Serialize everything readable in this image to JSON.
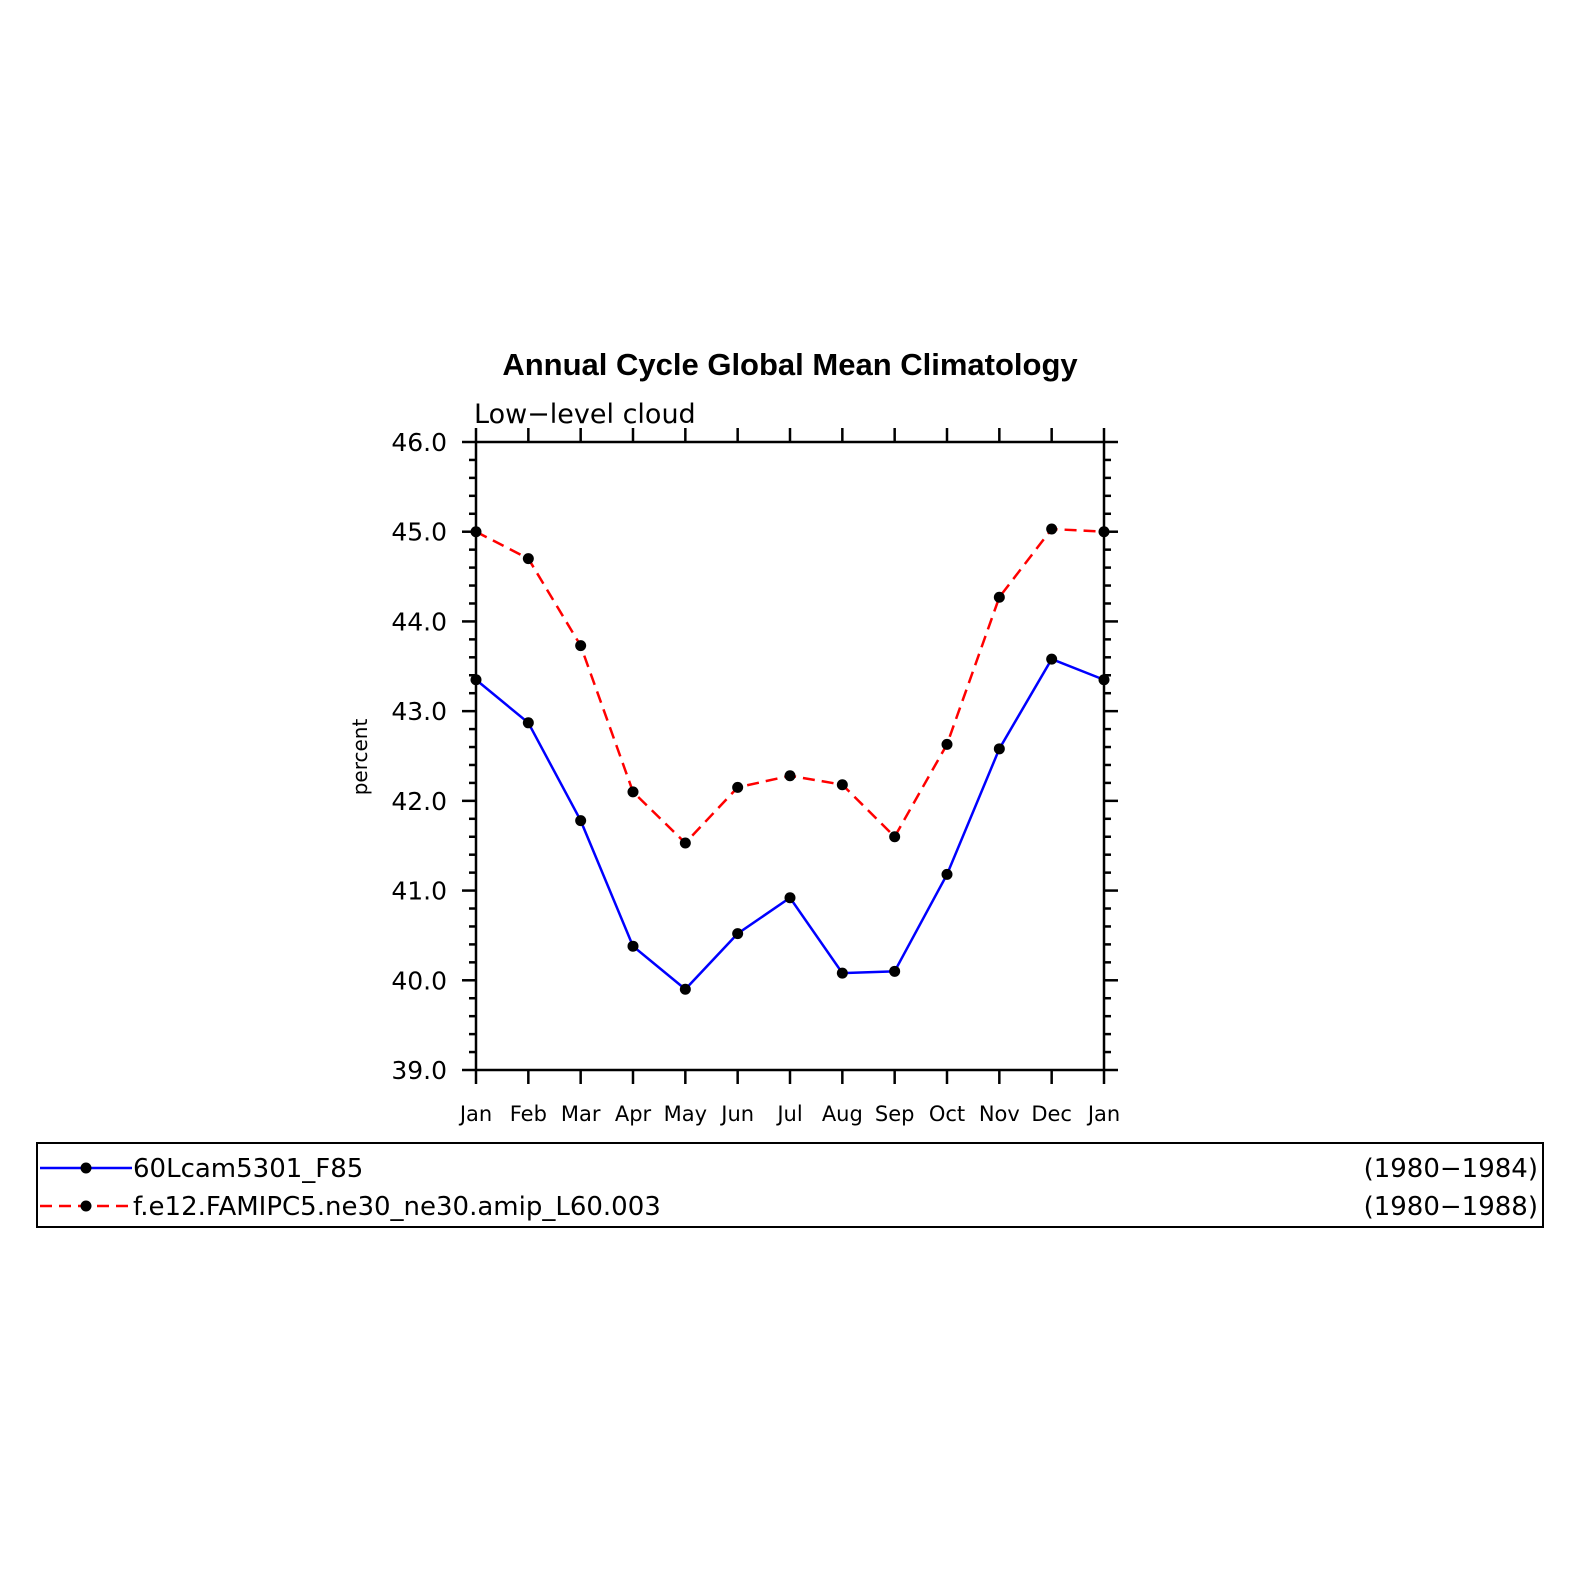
{
  "chart_data": {
    "type": "line",
    "title": "Annual Cycle Global Mean Climatology",
    "subtitle": "Low−level cloud",
    "ylabel": "percent",
    "xlabel": "",
    "ylim": [
      39.0,
      46.0
    ],
    "yticks": [
      "39.0",
      "40.0",
      "41.0",
      "42.0",
      "43.0",
      "44.0",
      "45.0",
      "46.0"
    ],
    "categories": [
      "Jan",
      "Feb",
      "Mar",
      "Apr",
      "May",
      "Jun",
      "Jul",
      "Aug",
      "Sep",
      "Oct",
      "Nov",
      "Dec",
      "Jan"
    ],
    "grid": false,
    "legend_position": "bottom",
    "series": [
      {
        "name": "60Lcam5301_F85",
        "period": "(1980−1984)",
        "color": "#0000ff",
        "dash": "solid",
        "values": [
          43.35,
          42.87,
          41.78,
          40.38,
          39.9,
          40.52,
          40.92,
          40.08,
          40.1,
          41.18,
          42.58,
          43.58,
          43.35
        ]
      },
      {
        "name": "f.e12.FAMIPC5.ne30_ne30.amip_L60.003",
        "period": "(1980−1988)",
        "color": "#ff0000",
        "dash": "dashed",
        "values": [
          45.0,
          44.7,
          43.73,
          42.1,
          41.53,
          42.15,
          42.28,
          42.18,
          41.6,
          42.63,
          44.27,
          45.03,
          45.0
        ]
      }
    ]
  }
}
